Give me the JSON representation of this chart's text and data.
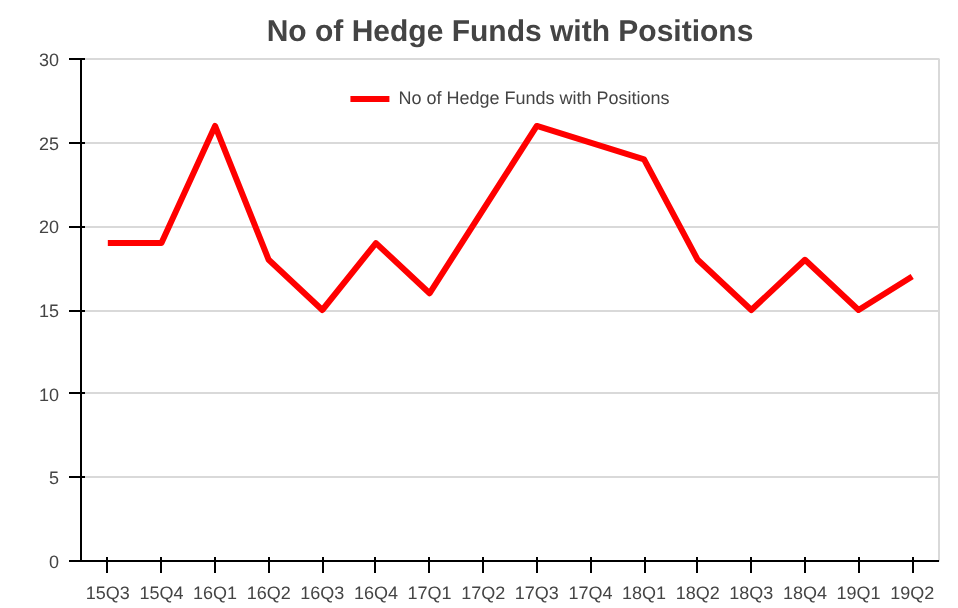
{
  "chart_data": {
    "type": "line",
    "title": "No of Hedge Funds with Positions",
    "categories": [
      "15Q3",
      "15Q4",
      "16Q1",
      "16Q2",
      "16Q3",
      "16Q4",
      "17Q1",
      "17Q2",
      "17Q3",
      "17Q4",
      "18Q1",
      "18Q2",
      "18Q3",
      "18Q4",
      "19Q1",
      "19Q2"
    ],
    "series": [
      {
        "name": "No of Hedge Funds with Positions",
        "color": "#ff0000",
        "values": [
          19,
          19,
          26,
          18,
          15,
          19,
          16,
          21,
          26,
          25,
          24,
          18,
          15,
          18,
          15,
          17
        ]
      }
    ],
    "ylim": [
      0,
      30
    ],
    "yticks": [
      0,
      5,
      10,
      15,
      20,
      25,
      30
    ],
    "grid": "y",
    "legend": "top",
    "marker": "none",
    "line_style": "solid"
  }
}
